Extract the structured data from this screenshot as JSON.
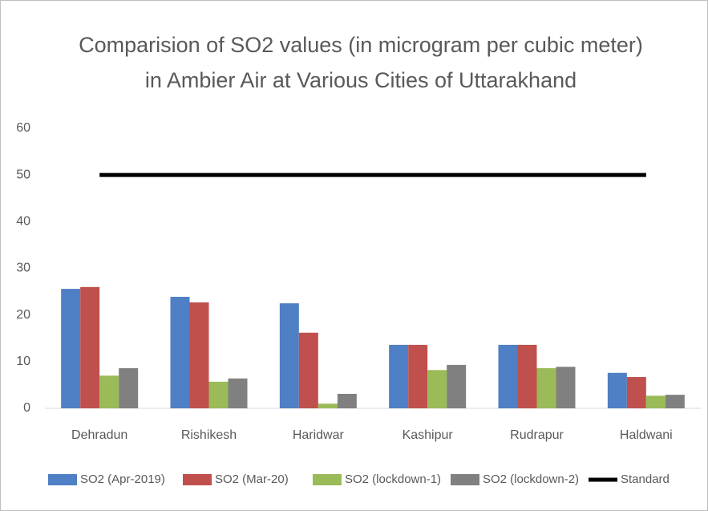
{
  "chart_data": {
    "type": "bar",
    "title": [
      "Comparision of SO2 values (in microgram per cubic meter)",
      "in Ambier Air at Various Cities of Uttarakhand"
    ],
    "categories": [
      "Dehradun",
      "Rishikesh",
      "Haridwar",
      "Kashipur",
      "Rudrapur",
      "Haldwani"
    ],
    "series": [
      {
        "name": "SO2 (Apr-2019)",
        "color": "#4f7fc4",
        "values": [
          25.6,
          23.9,
          22.5,
          13.6,
          13.6,
          7.6
        ]
      },
      {
        "name": "SO2 (Mar-20)",
        "color": "#c0504d",
        "values": [
          26,
          22.7,
          16.2,
          13.6,
          13.6,
          6.7
        ]
      },
      {
        "name": "SO2 (lockdown-1)",
        "color": "#9bbb59",
        "values": [
          7,
          5.7,
          1,
          8.2,
          8.6,
          2.7
        ]
      },
      {
        "name": "SO2 (lockdown-2)",
        "color": "#808080",
        "values": [
          8.6,
          6.4,
          3.1,
          9.3,
          8.9,
          2.9
        ]
      },
      {
        "name": "Standard",
        "color": "#000000",
        "type": "line",
        "values": [
          50,
          50,
          50,
          50,
          50,
          50
        ]
      }
    ],
    "ylim": [
      0,
      60
    ],
    "yticks": [
      0,
      10,
      20,
      30,
      40,
      50,
      60
    ],
    "grid": false,
    "legend": "bottom"
  }
}
